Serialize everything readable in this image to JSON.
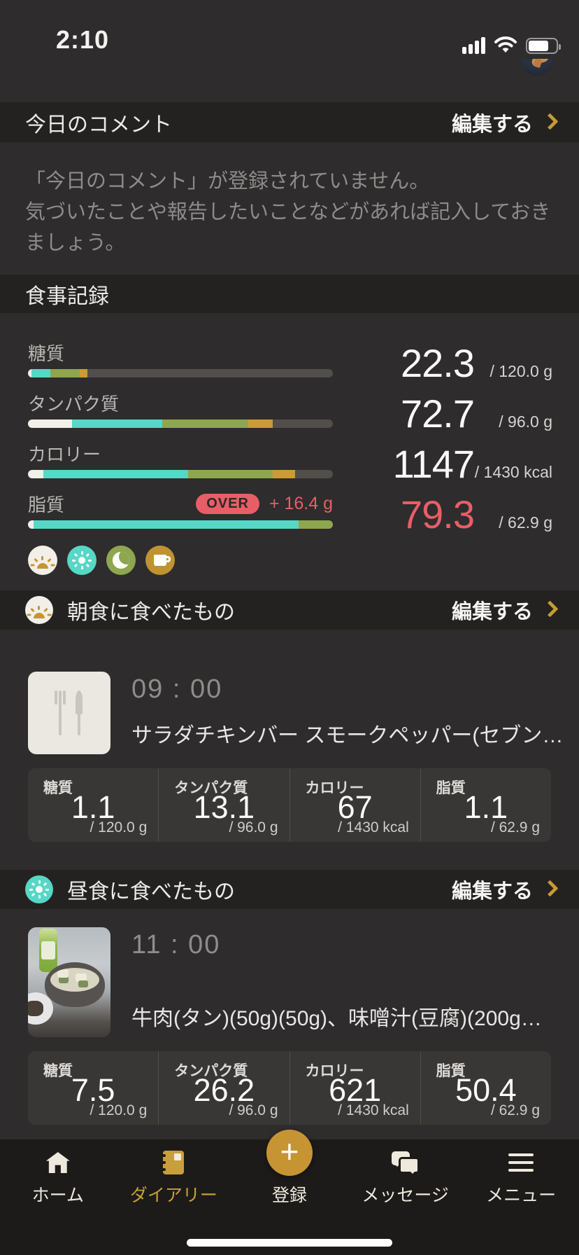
{
  "colors": {
    "cream": "#f2efe9",
    "teal": "#57d7c6",
    "olive": "#8ea650",
    "gold": "#cb9b35",
    "track": "#514e4b",
    "over": "#e85e66",
    "accent_gold": "#c79b33"
  },
  "status_bar": {
    "time": "2:10"
  },
  "comment_section": {
    "title": "今日のコメント",
    "edit_label": "編集する",
    "placeholder_line1": "「今日のコメント」が登録されていません。",
    "placeholder_line2": "気づいたことや報告したいことなどがあれば記入しておきましょう。"
  },
  "meal_record": {
    "title": "食事記録",
    "nutrients": [
      {
        "name": "糖質",
        "value": "22.3",
        "limit": "/ 120.0 g",
        "over": false,
        "segments": [
          {
            "color": "cream",
            "percent": 1.2
          },
          {
            "color": "teal",
            "percent": 6.2
          },
          {
            "color": "olive",
            "percent": 9.6
          },
          {
            "color": "gold",
            "percent": 2.6
          }
        ]
      },
      {
        "name": "タンパク質",
        "value": "72.7",
        "limit": "/ 96.0 g",
        "over": false,
        "segments": [
          {
            "color": "cream",
            "percent": 14.4
          },
          {
            "color": "teal",
            "percent": 29.7
          },
          {
            "color": "olive",
            "percent": 28.2
          },
          {
            "color": "gold",
            "percent": 8.0
          }
        ]
      },
      {
        "name": "カロリー",
        "value": "1147",
        "limit": "/ 1430 kcal",
        "over": false,
        "segments": [
          {
            "color": "cream",
            "percent": 5.0
          },
          {
            "color": "teal",
            "percent": 47.5
          },
          {
            "color": "olive",
            "percent": 27.8
          },
          {
            "color": "gold",
            "percent": 7.3
          }
        ]
      },
      {
        "name": "脂質",
        "value": "79.3",
        "limit": "/ 62.9 g",
        "over": true,
        "over_label": "OVER",
        "over_amount": "+ 16.4 g",
        "segments": [
          {
            "color": "cream",
            "percent": 1.8
          },
          {
            "color": "teal",
            "percent": 86.9
          },
          {
            "color": "olive",
            "percent": 11.3
          }
        ]
      }
    ],
    "legend_icons": [
      "sunrise-breakfast",
      "sun-lunch",
      "moon-dinner",
      "mug-snack"
    ]
  },
  "meals": [
    {
      "title": "朝食に食べたもの",
      "edit_label": "編集する",
      "entry": {
        "time": "09 : 00",
        "name": "サラダチキンバー スモークペッパー(セブン…"
      },
      "nutrition": [
        {
          "label": "糖質",
          "value": "1.1",
          "limit": "/ 120.0 g"
        },
        {
          "label": "タンパク質",
          "value": "13.1",
          "limit": "/ 96.0 g"
        },
        {
          "label": "カロリー",
          "value": "67",
          "limit": "/ 1430 kcal"
        },
        {
          "label": "脂質",
          "value": "1.1",
          "limit": "/ 62.9 g"
        }
      ]
    },
    {
      "title": "昼食に食べたもの",
      "edit_label": "編集する",
      "entry": {
        "time": "11 : 00",
        "name": "牛肉(タン)(50g)(50g)、味噌汁(豆腐)(200g…"
      },
      "nutrition": [
        {
          "label": "糖質",
          "value": "7.5",
          "limit": "/ 120.0 g"
        },
        {
          "label": "タンパク質",
          "value": "26.2",
          "limit": "/ 96.0 g"
        },
        {
          "label": "カロリー",
          "value": "621",
          "limit": "/ 1430 kcal"
        },
        {
          "label": "脂質",
          "value": "50.4",
          "limit": "/ 62.9 g"
        }
      ]
    }
  ],
  "tab_bar": {
    "items": [
      {
        "label": "ホーム",
        "icon": "home",
        "active": false
      },
      {
        "label": "ダイアリー",
        "icon": "diary",
        "active": true
      },
      {
        "label": "登録",
        "icon": "plus",
        "active": false
      },
      {
        "label": "メッセージ",
        "icon": "message",
        "active": false
      },
      {
        "label": "メニュー",
        "icon": "menu",
        "active": false
      }
    ],
    "fab_glyph": "+"
  }
}
